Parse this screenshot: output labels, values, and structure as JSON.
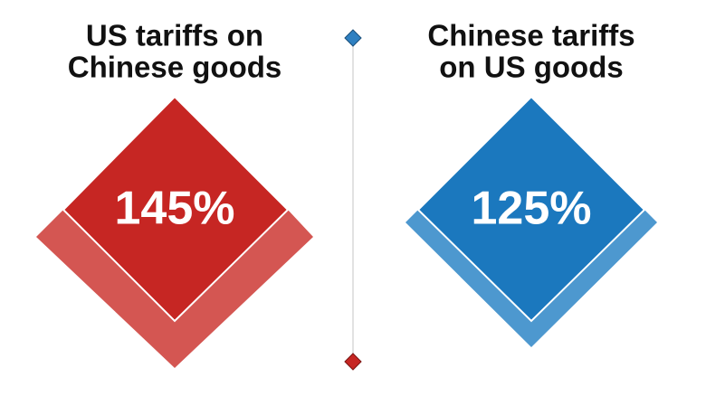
{
  "panels": [
    {
      "title": [
        "US tariffs on",
        "Chinese goods"
      ],
      "value": "145%"
    },
    {
      "title": [
        "Chinese tariffs",
        "on US goods"
      ],
      "value": "125%"
    }
  ]
}
